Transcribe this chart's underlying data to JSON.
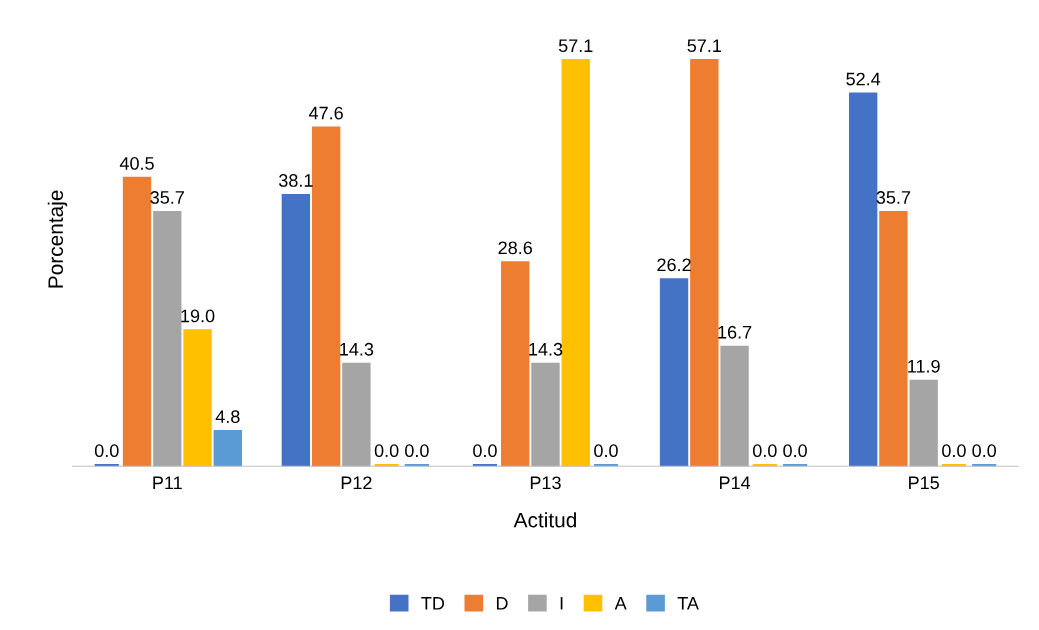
{
  "chart_data": {
    "type": "bar",
    "xlabel": "Actitud",
    "ylabel": "Porcentaje",
    "categories": [
      "P11",
      "P12",
      "P13",
      "P14",
      "P15"
    ],
    "series": [
      {
        "name": "TD",
        "color": "#4472c4",
        "values": [
          0.0,
          38.1,
          0.0,
          26.2,
          52.4
        ],
        "value_labels": [
          "0.0",
          "38.1",
          "0.0",
          "26.2",
          "52.4"
        ]
      },
      {
        "name": "D",
        "color": "#ed7d31",
        "values": [
          40.5,
          47.6,
          28.6,
          57.1,
          35.7
        ],
        "value_labels": [
          "40.5",
          "47.6",
          "28.6",
          "57.1",
          "35.7"
        ]
      },
      {
        "name": "I",
        "color": "#a5a5a5",
        "values": [
          35.7,
          14.3,
          14.3,
          16.7,
          11.9
        ],
        "value_labels": [
          "35.7",
          "14.3",
          "14.3",
          "16.7",
          "11.9"
        ]
      },
      {
        "name": "A",
        "color": "#ffc000",
        "values": [
          19.0,
          0.0,
          57.1,
          0.0,
          0.0
        ],
        "value_labels": [
          "19.0",
          "0.0",
          "57.1",
          "0.0",
          "0.0"
        ]
      },
      {
        "name": "TA",
        "color": "#5b9bd5",
        "values": [
          4.8,
          0.0,
          0.0,
          0.0,
          0.0
        ],
        "value_labels": [
          "4.8",
          "0.0",
          "0.0",
          "0.0",
          "0.0"
        ]
      }
    ],
    "legend": "bottom",
    "tick_labels": "x"
  }
}
